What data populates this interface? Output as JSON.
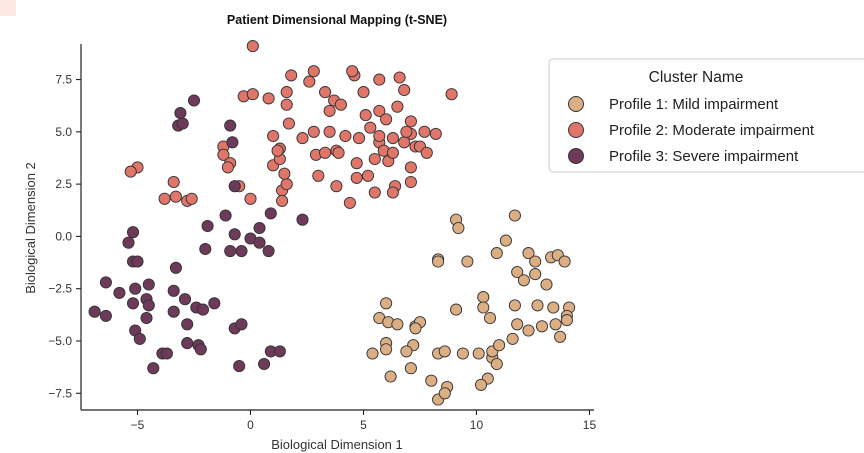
{
  "chart_data": {
    "type": "scatter",
    "title": "Patient Dimensional Mapping (t-SNE)",
    "xlabel": "Biological Dimension 1",
    "ylabel": "Biological Dimension 2",
    "xlim": [
      -7.5,
      15.2
    ],
    "ylim": [
      -8.3,
      9.2
    ],
    "x_ticks": [
      -5,
      0,
      5,
      10,
      15
    ],
    "x_tick_labels": [
      "−5",
      "0",
      "5",
      "10",
      "15"
    ],
    "y_ticks": [
      -7.5,
      -5.0,
      -2.5,
      0.0,
      2.5,
      5.0,
      7.5
    ],
    "y_tick_labels": [
      "−7.5",
      "−5.0",
      "−2.5",
      "0.0",
      "2.5",
      "5.0",
      "7.5"
    ],
    "grid": false,
    "legend": {
      "title": "Cluster Name",
      "placement": "top-right"
    },
    "series": [
      {
        "name": "Profile 1: Mild impairment",
        "color": "#dcae84",
        "points": [
          [
            9.1,
            0.8
          ],
          [
            9.2,
            0.4
          ],
          [
            8.3,
            -1.1
          ],
          [
            8.3,
            -1.2
          ],
          [
            9.6,
            -1.2
          ],
          [
            10.9,
            -0.8
          ],
          [
            11.3,
            -0.2
          ],
          [
            11.7,
            1.0
          ],
          [
            11.8,
            -1.7
          ],
          [
            12.1,
            -2.1
          ],
          [
            12.3,
            -0.8
          ],
          [
            12.6,
            -1.8
          ],
          [
            12.6,
            -1.2
          ],
          [
            13.1,
            -2.3
          ],
          [
            13.3,
            -1.0
          ],
          [
            13.6,
            -0.9
          ],
          [
            13.9,
            -1.2
          ],
          [
            12.7,
            -3.3
          ],
          [
            11.7,
            -3.3
          ],
          [
            10.3,
            -2.9
          ],
          [
            10.3,
            -3.4
          ],
          [
            10.6,
            -3.9
          ],
          [
            11.8,
            -4.2
          ],
          [
            12.3,
            -4.5
          ],
          [
            12.9,
            -4.3
          ],
          [
            13.5,
            -4.2
          ],
          [
            13.4,
            -3.4
          ],
          [
            14.1,
            -3.4
          ],
          [
            14.0,
            -3.8
          ],
          [
            13.7,
            -4.8
          ],
          [
            14.0,
            -4.0
          ],
          [
            9.1,
            -3.5
          ],
          [
            6.0,
            -3.2
          ],
          [
            5.7,
            -3.9
          ],
          [
            6.1,
            -4.1
          ],
          [
            6.5,
            -4.2
          ],
          [
            7.3,
            -4.3
          ],
          [
            7.5,
            -4.1
          ],
          [
            7.3,
            -4.4
          ],
          [
            7.2,
            -5.2
          ],
          [
            8.3,
            -5.6
          ],
          [
            8.6,
            -5.5
          ],
          [
            9.4,
            -5.6
          ],
          [
            10.1,
            -5.6
          ],
          [
            10.7,
            -5.8
          ],
          [
            10.7,
            -5.5
          ],
          [
            11.0,
            -5.2
          ],
          [
            11.6,
            -4.9
          ],
          [
            10.9,
            -6.1
          ],
          [
            10.5,
            -6.8
          ],
          [
            10.2,
            -7.1
          ],
          [
            8.7,
            -7.2
          ],
          [
            8.3,
            -7.8
          ],
          [
            8.6,
            -7.5
          ],
          [
            8.0,
            -6.9
          ],
          [
            7.1,
            -6.3
          ],
          [
            6.2,
            -6.7
          ],
          [
            5.4,
            -5.6
          ],
          [
            6.0,
            -5.1
          ],
          [
            6.9,
            -5.5
          ],
          [
            6.0,
            -5.4
          ]
        ]
      },
      {
        "name": "Profile 2: Moderate impairment",
        "color": "#e0756a",
        "points": [
          [
            0.1,
            9.1
          ],
          [
            -0.3,
            6.7
          ],
          [
            0.1,
            6.8
          ],
          [
            0.8,
            6.6
          ],
          [
            1.6,
            6.3
          ],
          [
            1.8,
            7.7
          ],
          [
            2.6,
            7.4
          ],
          [
            1.6,
            6.9
          ],
          [
            2.8,
            7.9
          ],
          [
            3.3,
            6.9
          ],
          [
            3.7,
            6.5
          ],
          [
            4.0,
            6.3
          ],
          [
            3.5,
            6.0
          ],
          [
            4.6,
            7.7
          ],
          [
            4.5,
            7.9
          ],
          [
            5.0,
            6.9
          ],
          [
            5.1,
            5.8
          ],
          [
            5.7,
            6.0
          ],
          [
            5.7,
            7.5
          ],
          [
            6.0,
            5.6
          ],
          [
            6.5,
            6.2
          ],
          [
            6.6,
            7.6
          ],
          [
            6.8,
            7.0
          ],
          [
            7.1,
            5.5
          ],
          [
            7.7,
            5.0
          ],
          [
            7.1,
            4.9
          ],
          [
            8.2,
            4.9
          ],
          [
            8.9,
            6.8
          ],
          [
            -5.0,
            3.3
          ],
          [
            -5.3,
            3.1
          ],
          [
            -3.4,
            2.6
          ],
          [
            -3.3,
            1.9
          ],
          [
            -3.8,
            1.8
          ],
          [
            -2.8,
            1.7
          ],
          [
            -2.6,
            1.8
          ],
          [
            -1.2,
            4.3
          ],
          [
            -1.2,
            3.9
          ],
          [
            -0.9,
            3.5
          ],
          [
            -1.0,
            3.3
          ],
          [
            -0.5,
            2.4
          ],
          [
            0.0,
            1.8
          ],
          [
            1.0,
            3.4
          ],
          [
            1.0,
            4.8
          ],
          [
            1.3,
            4.2
          ],
          [
            1.4,
            2.2
          ],
          [
            1.4,
            1.7
          ],
          [
            1.6,
            2.5
          ],
          [
            1.7,
            5.4
          ],
          [
            2.3,
            4.7
          ],
          [
            2.9,
            3.9
          ],
          [
            2.8,
            5.0
          ],
          [
            3.0,
            2.9
          ],
          [
            3.5,
            5.0
          ],
          [
            3.8,
            4.1
          ],
          [
            3.9,
            4.0
          ],
          [
            3.8,
            2.4
          ],
          [
            4.2,
            4.8
          ],
          [
            4.7,
            3.5
          ],
          [
            4.8,
            4.7
          ],
          [
            4.7,
            2.8
          ],
          [
            5.2,
            2.9
          ],
          [
            5.5,
            3.7
          ],
          [
            5.3,
            5.2
          ],
          [
            5.7,
            4.5
          ],
          [
            5.9,
            4.1
          ],
          [
            6.3,
            4.7
          ],
          [
            6.1,
            3.6
          ],
          [
            6.4,
            2.4
          ],
          [
            6.3,
            2.1
          ],
          [
            6.3,
            4.0
          ],
          [
            6.8,
            4.5
          ],
          [
            6.9,
            5.0
          ],
          [
            7.1,
            3.3
          ],
          [
            7.3,
            4.3
          ],
          [
            7.5,
            4.3
          ],
          [
            7.1,
            2.6
          ],
          [
            5.5,
            2.1
          ],
          [
            4.4,
            1.6
          ],
          [
            7.8,
            4.0
          ],
          [
            1.3,
            3.7
          ],
          [
            1.2,
            4.1
          ],
          [
            1.5,
            3.0
          ],
          [
            3.3,
            4.0
          ],
          [
            5.7,
            4.8
          ]
        ]
      },
      {
        "name": "Profile 3: Severe impairment",
        "color": "#6e3a59",
        "points": [
          [
            -3.1,
            5.9
          ],
          [
            -3.2,
            5.3
          ],
          [
            -3.0,
            5.4
          ],
          [
            -2.5,
            6.5
          ],
          [
            -0.9,
            5.3
          ],
          [
            -0.8,
            4.5
          ],
          [
            -0.7,
            2.4
          ],
          [
            -1.1,
            1.0
          ],
          [
            -1.9,
            0.5
          ],
          [
            -2.0,
            -0.6
          ],
          [
            -0.9,
            -0.7
          ],
          [
            -0.4,
            -0.7
          ],
          [
            0.0,
            -0.1
          ],
          [
            0.4,
            0.4
          ],
          [
            -0.7,
            0.1
          ],
          [
            0.9,
            1.1
          ],
          [
            0.4,
            -0.3
          ],
          [
            0.8,
            -0.7
          ],
          [
            2.3,
            0.8
          ],
          [
            -5.4,
            -0.3
          ],
          [
            -5.2,
            0.2
          ],
          [
            -5.2,
            -1.2
          ],
          [
            -5.0,
            -1.2
          ],
          [
            -6.4,
            -2.2
          ],
          [
            -5.8,
            -2.7
          ],
          [
            -5.1,
            -2.5
          ],
          [
            -5.2,
            -3.2
          ],
          [
            -4.6,
            -3.0
          ],
          [
            -4.5,
            -3.3
          ],
          [
            -3.3,
            -1.5
          ],
          [
            -3.4,
            -2.6
          ],
          [
            -2.9,
            -3.0
          ],
          [
            -2.4,
            -3.4
          ],
          [
            -1.6,
            -3.2
          ],
          [
            -2.1,
            -3.5
          ],
          [
            -3.4,
            -3.6
          ],
          [
            -2.8,
            -4.2
          ],
          [
            -4.6,
            -3.9
          ],
          [
            -5.1,
            -4.5
          ],
          [
            -4.9,
            -4.9
          ],
          [
            -3.9,
            -5.6
          ],
          [
            -3.7,
            -5.6
          ],
          [
            -4.3,
            -6.3
          ],
          [
            -2.8,
            -5.1
          ],
          [
            -2.3,
            -5.2
          ],
          [
            -2.2,
            -5.4
          ],
          [
            -0.7,
            -4.4
          ],
          [
            -0.4,
            -4.2
          ],
          [
            -0.5,
            -6.2
          ],
          [
            0.6,
            -6.1
          ],
          [
            0.9,
            -5.5
          ],
          [
            1.3,
            -5.5
          ],
          [
            -6.9,
            -3.6
          ],
          [
            -6.4,
            -3.8
          ],
          [
            -4.5,
            -2.3
          ]
        ]
      }
    ]
  },
  "colors": {
    "marker_stroke": "#333333",
    "axis": "#222222",
    "legend_frame": "#cccccc"
  }
}
